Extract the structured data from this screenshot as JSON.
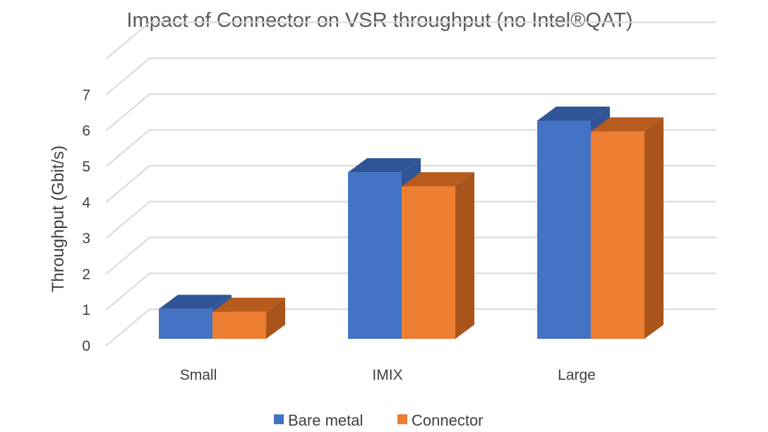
{
  "chart_data": {
    "type": "bar",
    "style": "3d-clustered-column",
    "title": "Impact of Connector on VSR throughput (no Intel®QAT)",
    "xlabel": "",
    "ylabel": "Throughput (Gbit/s)",
    "ylim": [
      0,
      7
    ],
    "y_ticks": [
      "0",
      "1",
      "2",
      "3",
      "4",
      "5",
      "6",
      "7"
    ],
    "grid": true,
    "legend_position": "bottom",
    "categories": [
      "Small",
      "IMIX",
      "Large"
    ],
    "series": [
      {
        "name": "Bare metal",
        "color": "#4472c4",
        "top_color": "#2f5597",
        "side_color": "#2f5597",
        "values": [
          1.03,
          4.84,
          6.28
        ]
      },
      {
        "name": "Connector",
        "color": "#ed7d31",
        "top_color": "#b85b1e",
        "side_color": "#a9541b",
        "values": [
          0.95,
          4.45,
          5.98
        ]
      }
    ]
  }
}
